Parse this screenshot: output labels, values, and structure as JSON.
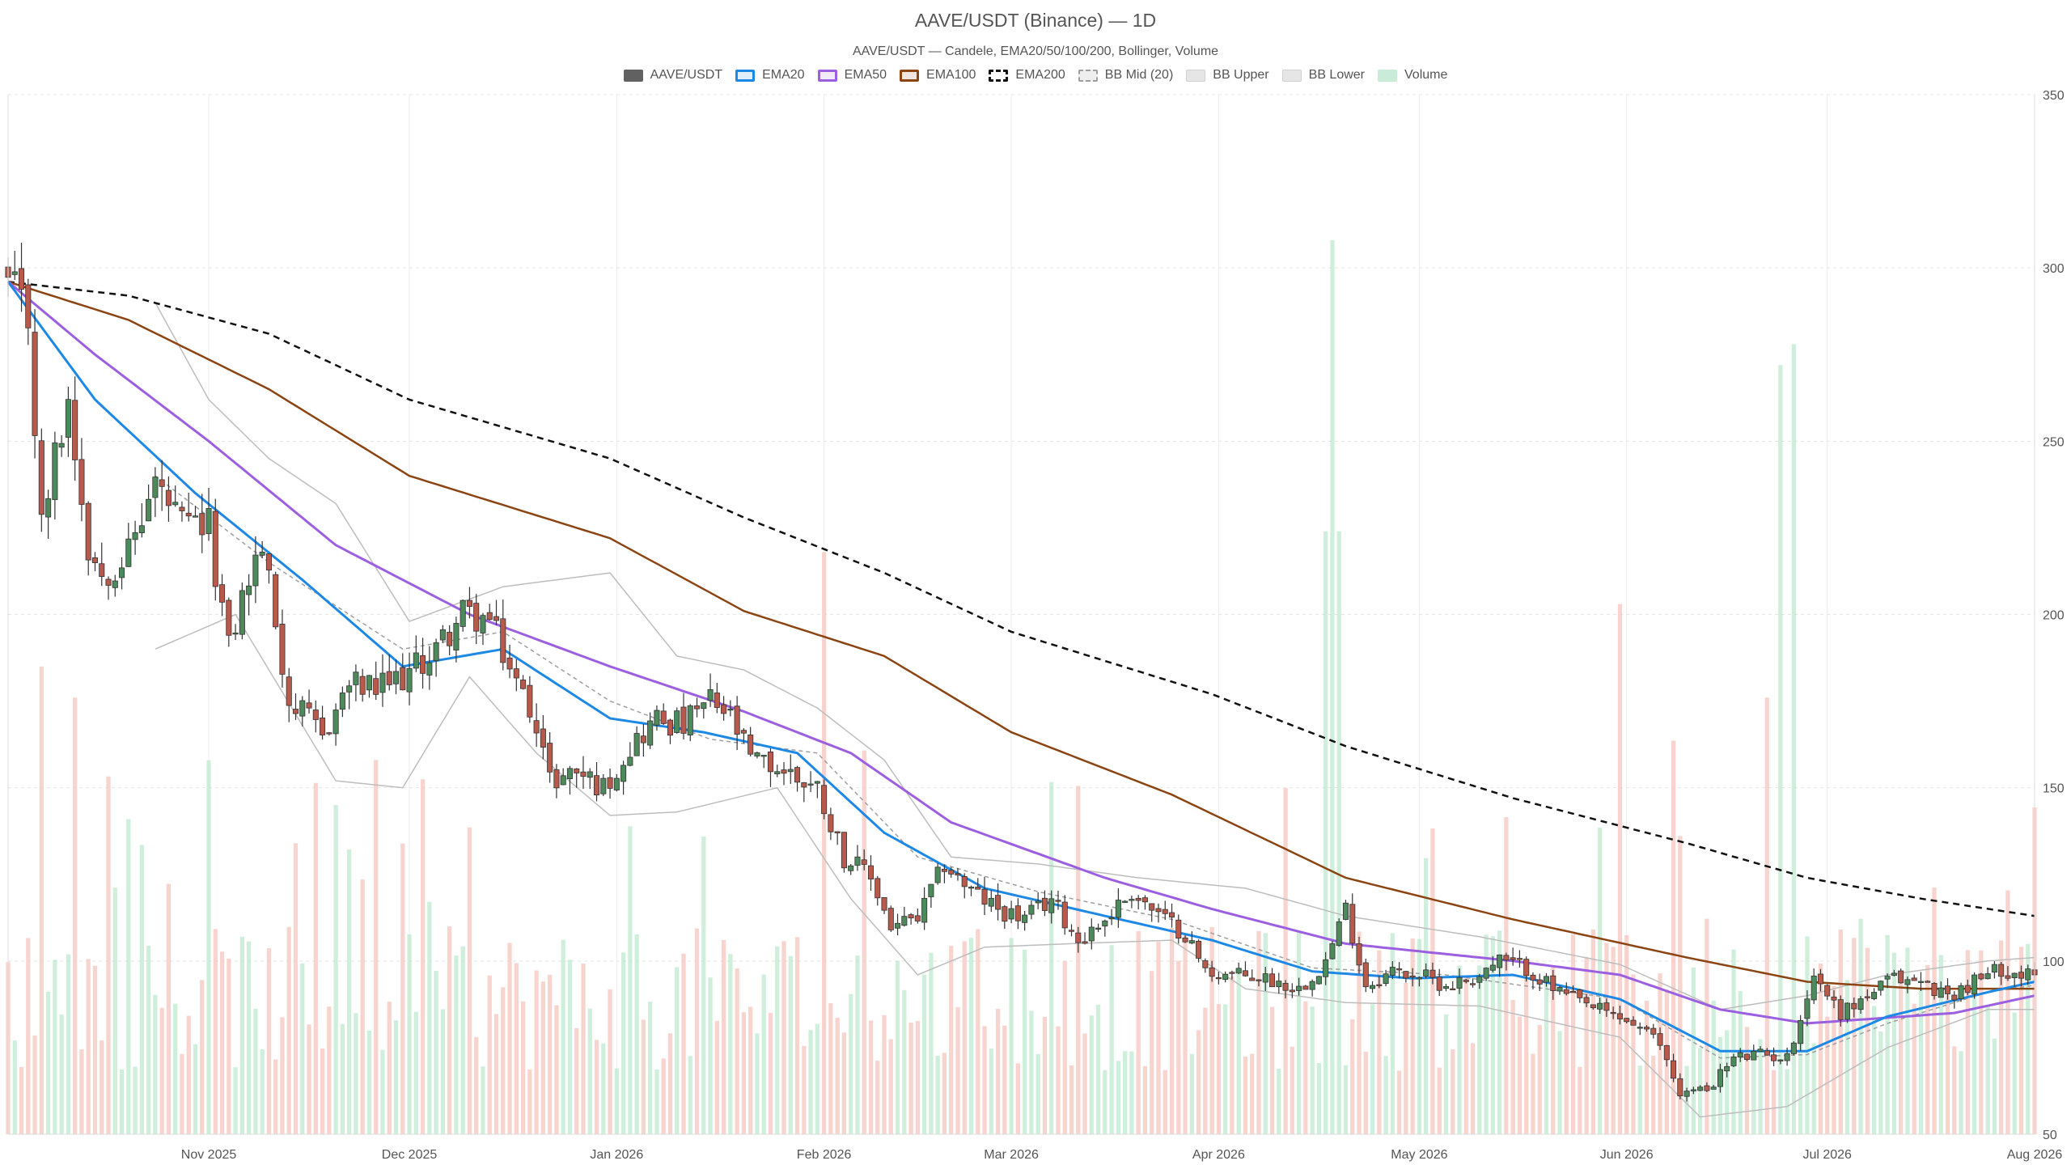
{
  "chart_data": {
    "type": "candlestick",
    "title": "AAVE/USDT (Binance) — 1D",
    "subtitle": "AAVE/USDT — Candele, EMA20/50/100/200, Bollinger, Volume",
    "legend_position": "top-center",
    "grid": true,
    "legend": [
      {
        "key": "candles",
        "label": "AAVE/USDT",
        "color": "#616161"
      },
      {
        "key": "ema20",
        "label": "EMA20",
        "color": "#1e88e5"
      },
      {
        "key": "ema50",
        "label": "EMA50",
        "color": "#9c5fe0"
      },
      {
        "key": "ema100",
        "label": "EMA100",
        "color": "#8b4513"
      },
      {
        "key": "ema200",
        "label": "EMA200",
        "color": "#111111"
      },
      {
        "key": "bbmid",
        "label": "BB Mid (20)",
        "color": "#9e9e9e"
      },
      {
        "key": "bbupper",
        "label": "BB Upper",
        "color": "#bdbdbd"
      },
      {
        "key": "bblower",
        "label": "BB Lower",
        "color": "#bdbdbd"
      },
      {
        "key": "volume",
        "label": "Volume",
        "color": "#a5dfbf"
      }
    ],
    "colors": {
      "up": "#4d8a5b",
      "down": "#b85a4b",
      "vol_up": "#bfe9d0",
      "vol_down": "#f5c6bf"
    },
    "y_axis": {
      "min": 50,
      "max": 350,
      "ticks": [
        50,
        100,
        150,
        200,
        250,
        300,
        350
      ],
      "position": "right"
    },
    "x_axis": {
      "ticks": [
        "Nov 2025",
        "Dec 2025",
        "Jan 2026",
        "Feb 2026",
        "Mar 2026",
        "Apr 2026",
        "May 2026",
        "Jun 2026",
        "Jul 2026",
        "Aug 2026"
      ]
    },
    "date_range": [
      "2025-10-02",
      "2026-08-01"
    ],
    "close_waypoints": [
      [
        "2025-10-02",
        295
      ],
      [
        "2025-10-05",
        285
      ],
      [
        "2025-10-07",
        225
      ],
      [
        "2025-10-09",
        245
      ],
      [
        "2025-10-11",
        262
      ],
      [
        "2025-10-14",
        220
      ],
      [
        "2025-10-16",
        212
      ],
      [
        "2025-10-20",
        218
      ],
      [
        "2025-10-24",
        238
      ],
      [
        "2025-10-28",
        225
      ],
      [
        "2025-11-01",
        225
      ],
      [
        "2025-11-04",
        190
      ],
      [
        "2025-11-06",
        205
      ],
      [
        "2025-11-09",
        220
      ],
      [
        "2025-11-13",
        175
      ],
      [
        "2025-11-18",
        165
      ],
      [
        "2025-11-22",
        180
      ],
      [
        "2025-11-26",
        178
      ],
      [
        "2025-12-01",
        183
      ],
      [
        "2025-12-05",
        190
      ],
      [
        "2025-12-09",
        200
      ],
      [
        "2025-12-13",
        198
      ],
      [
        "2025-12-17",
        180
      ],
      [
        "2025-12-20",
        170
      ],
      [
        "2025-12-22",
        152
      ],
      [
        "2025-12-26",
        155
      ],
      [
        "2025-12-30",
        150
      ],
      [
        "2026-01-03",
        162
      ],
      [
        "2026-01-07",
        170
      ],
      [
        "2026-01-11",
        168
      ],
      [
        "2026-01-15",
        175
      ],
      [
        "2026-01-18",
        170
      ],
      [
        "2026-01-21",
        158
      ],
      [
        "2026-01-26",
        155
      ],
      [
        "2026-01-31",
        150
      ],
      [
        "2026-02-04",
        130
      ],
      [
        "2026-02-08",
        124
      ],
      [
        "2026-02-11",
        110
      ],
      [
        "2026-02-15",
        112
      ],
      [
        "2026-02-19",
        128
      ],
      [
        "2026-02-23",
        120
      ],
      [
        "2026-02-27",
        115
      ],
      [
        "2026-03-03",
        112
      ],
      [
        "2026-03-07",
        118
      ],
      [
        "2026-03-11",
        106
      ],
      [
        "2026-03-15",
        112
      ],
      [
        "2026-03-19",
        120
      ],
      [
        "2026-03-23",
        113
      ],
      [
        "2026-03-27",
        108
      ],
      [
        "2026-03-30",
        97
      ],
      [
        "2026-04-03",
        96
      ],
      [
        "2026-04-08",
        95
      ],
      [
        "2026-04-13",
        92
      ],
      [
        "2026-04-17",
        100
      ],
      [
        "2026-04-20",
        115
      ],
      [
        "2026-04-23",
        93
      ],
      [
        "2026-04-27",
        97
      ],
      [
        "2026-05-01",
        96
      ],
      [
        "2026-05-05",
        93
      ],
      [
        "2026-05-09",
        95
      ],
      [
        "2026-05-13",
        100
      ],
      [
        "2026-05-17",
        98
      ],
      [
        "2026-05-21",
        92
      ],
      [
        "2026-05-25",
        88
      ],
      [
        "2026-05-29",
        85
      ],
      [
        "2026-06-02",
        82
      ],
      [
        "2026-06-06",
        76
      ],
      [
        "2026-06-09",
        62
      ],
      [
        "2026-06-13",
        63
      ],
      [
        "2026-06-17",
        72
      ],
      [
        "2026-06-21",
        73
      ],
      [
        "2026-06-25",
        72
      ],
      [
        "2026-06-29",
        96
      ],
      [
        "2026-07-03",
        85
      ],
      [
        "2026-07-07",
        90
      ],
      [
        "2026-07-11",
        95
      ],
      [
        "2026-07-15",
        94
      ],
      [
        "2026-07-19",
        90
      ],
      [
        "2026-07-23",
        94
      ],
      [
        "2026-07-27",
        98
      ],
      [
        "2026-08-01",
        95
      ]
    ],
    "ema_waypoints": {
      "ema20": [
        [
          "2025-10-02",
          296
        ],
        [
          "2025-10-15",
          262
        ],
        [
          "2025-10-30",
          235
        ],
        [
          "2025-11-15",
          210
        ],
        [
          "2025-11-30",
          185
        ],
        [
          "2025-12-15",
          190
        ],
        [
          "2025-12-31",
          170
        ],
        [
          "2026-01-14",
          166
        ],
        [
          "2026-01-28",
          160
        ],
        [
          "2026-02-10",
          137
        ],
        [
          "2026-02-25",
          121
        ],
        [
          "2026-03-15",
          113
        ],
        [
          "2026-03-31",
          106
        ],
        [
          "2026-04-15",
          97
        ],
        [
          "2026-04-30",
          95
        ],
        [
          "2026-05-15",
          96
        ],
        [
          "2026-05-31",
          89
        ],
        [
          "2026-06-15",
          74
        ],
        [
          "2026-06-28",
          74
        ],
        [
          "2026-07-10",
          84
        ],
        [
          "2026-07-25",
          91
        ],
        [
          "2026-08-01",
          94
        ]
      ],
      "ema50": [
        [
          "2025-10-02",
          296
        ],
        [
          "2025-10-15",
          275
        ],
        [
          "2025-11-01",
          250
        ],
        [
          "2025-11-20",
          220
        ],
        [
          "2025-12-10",
          200
        ],
        [
          "2025-12-31",
          185
        ],
        [
          "2026-01-20",
          172
        ],
        [
          "2026-02-05",
          160
        ],
        [
          "2026-02-20",
          140
        ],
        [
          "2026-03-15",
          124
        ],
        [
          "2026-03-31",
          115
        ],
        [
          "2026-04-20",
          105
        ],
        [
          "2026-05-15",
          100
        ],
        [
          "2026-05-31",
          96
        ],
        [
          "2026-06-15",
          86
        ],
        [
          "2026-06-28",
          82
        ],
        [
          "2026-07-20",
          85
        ],
        [
          "2026-08-01",
          90
        ]
      ],
      "ema100": [
        [
          "2025-10-02",
          296
        ],
        [
          "2025-10-20",
          285
        ],
        [
          "2025-11-10",
          265
        ],
        [
          "2025-12-01",
          240
        ],
        [
          "2025-12-31",
          222
        ],
        [
          "2026-01-20",
          201
        ],
        [
          "2026-02-10",
          188
        ],
        [
          "2026-03-01",
          166
        ],
        [
          "2026-03-25",
          148
        ],
        [
          "2026-04-20",
          124
        ],
        [
          "2026-05-15",
          112
        ],
        [
          "2026-06-10",
          101
        ],
        [
          "2026-06-28",
          94
        ],
        [
          "2026-07-15",
          92
        ],
        [
          "2026-08-01",
          92
        ]
      ],
      "ema200": [
        [
          "2025-10-02",
          296
        ],
        [
          "2025-10-20",
          292
        ],
        [
          "2025-11-10",
          281
        ],
        [
          "2025-12-01",
          262
        ],
        [
          "2025-12-31",
          245
        ],
        [
          "2026-01-20",
          228
        ],
        [
          "2026-02-10",
          212
        ],
        [
          "2026-03-01",
          195
        ],
        [
          "2026-03-31",
          177
        ],
        [
          "2026-04-20",
          162
        ],
        [
          "2026-05-15",
          147
        ],
        [
          "2026-06-10",
          134
        ],
        [
          "2026-06-28",
          124
        ],
        [
          "2026-07-15",
          118
        ],
        [
          "2026-08-01",
          113
        ]
      ]
    },
    "bollinger_waypoints": {
      "upper": [
        [
          "2025-10-24",
          290
        ],
        [
          "2025-11-01",
          262
        ],
        [
          "2025-11-10",
          245
        ],
        [
          "2025-11-20",
          232
        ],
        [
          "2025-12-01",
          198
        ],
        [
          "2025-12-15",
          208
        ],
        [
          "2025-12-31",
          212
        ],
        [
          "2026-01-10",
          188
        ],
        [
          "2026-01-20",
          184
        ],
        [
          "2026-01-31",
          173
        ],
        [
          "2026-02-10",
          158
        ],
        [
          "2026-02-20",
          130
        ],
        [
          "2026-03-05",
          128
        ],
        [
          "2026-03-20",
          124
        ],
        [
          "2026-04-05",
          121
        ],
        [
          "2026-04-20",
          113
        ],
        [
          "2026-05-10",
          107
        ],
        [
          "2026-05-31",
          99
        ],
        [
          "2026-06-15",
          86
        ],
        [
          "2026-06-28",
          90
        ],
        [
          "2026-07-10",
          96
        ],
        [
          "2026-07-25",
          100
        ],
        [
          "2026-08-01",
          101
        ]
      ],
      "mid": [
        [
          "2025-10-24",
          240
        ],
        [
          "2025-11-10",
          215
        ],
        [
          "2025-11-30",
          190
        ],
        [
          "2025-12-15",
          195
        ],
        [
          "2025-12-31",
          175
        ],
        [
          "2026-01-15",
          164
        ],
        [
          "2026-01-31",
          160
        ],
        [
          "2026-02-15",
          130
        ],
        [
          "2026-03-05",
          120
        ],
        [
          "2026-03-25",
          112
        ],
        [
          "2026-04-15",
          98
        ],
        [
          "2026-05-05",
          96
        ],
        [
          "2026-05-31",
          89
        ],
        [
          "2026-06-15",
          72
        ],
        [
          "2026-06-28",
          73
        ],
        [
          "2026-07-10",
          82
        ],
        [
          "2026-07-25",
          91
        ],
        [
          "2026-08-01",
          93
        ]
      ],
      "lower": [
        [
          "2025-10-24",
          190
        ],
        [
          "2025-11-05",
          200
        ],
        [
          "2025-11-20",
          152
        ],
        [
          "2025-11-30",
          150
        ],
        [
          "2025-12-10",
          182
        ],
        [
          "2025-12-20",
          160
        ],
        [
          "2025-12-31",
          142
        ],
        [
          "2026-01-10",
          143
        ],
        [
          "2026-01-25",
          150
        ],
        [
          "2026-02-05",
          118
        ],
        [
          "2026-02-15",
          96
        ],
        [
          "2026-02-25",
          104
        ],
        [
          "2026-03-10",
          105
        ],
        [
          "2026-03-25",
          106
        ],
        [
          "2026-04-05",
          92
        ],
        [
          "2026-04-20",
          88
        ],
        [
          "2026-05-10",
          87
        ],
        [
          "2026-05-31",
          78
        ],
        [
          "2026-06-12",
          55
        ],
        [
          "2026-06-25",
          58
        ],
        [
          "2026-07-10",
          75
        ],
        [
          "2026-07-25",
          86
        ],
        [
          "2026-08-01",
          86
        ]
      ]
    },
    "volume_spikes": [
      [
        "2025-10-07",
        0.45
      ],
      [
        "2025-10-12",
        0.42
      ],
      [
        "2025-11-14",
        0.28
      ],
      [
        "2025-11-26",
        0.36
      ],
      [
        "2026-02-01",
        0.56
      ],
      [
        "2026-04-17",
        0.58
      ],
      [
        "2026-04-18",
        0.86
      ],
      [
        "2026-04-19",
        0.58
      ],
      [
        "2026-05-31",
        0.51
      ],
      [
        "2026-06-22",
        0.42
      ],
      [
        "2026-06-24",
        0.74
      ],
      [
        "2026-06-26",
        0.76
      ]
    ]
  }
}
